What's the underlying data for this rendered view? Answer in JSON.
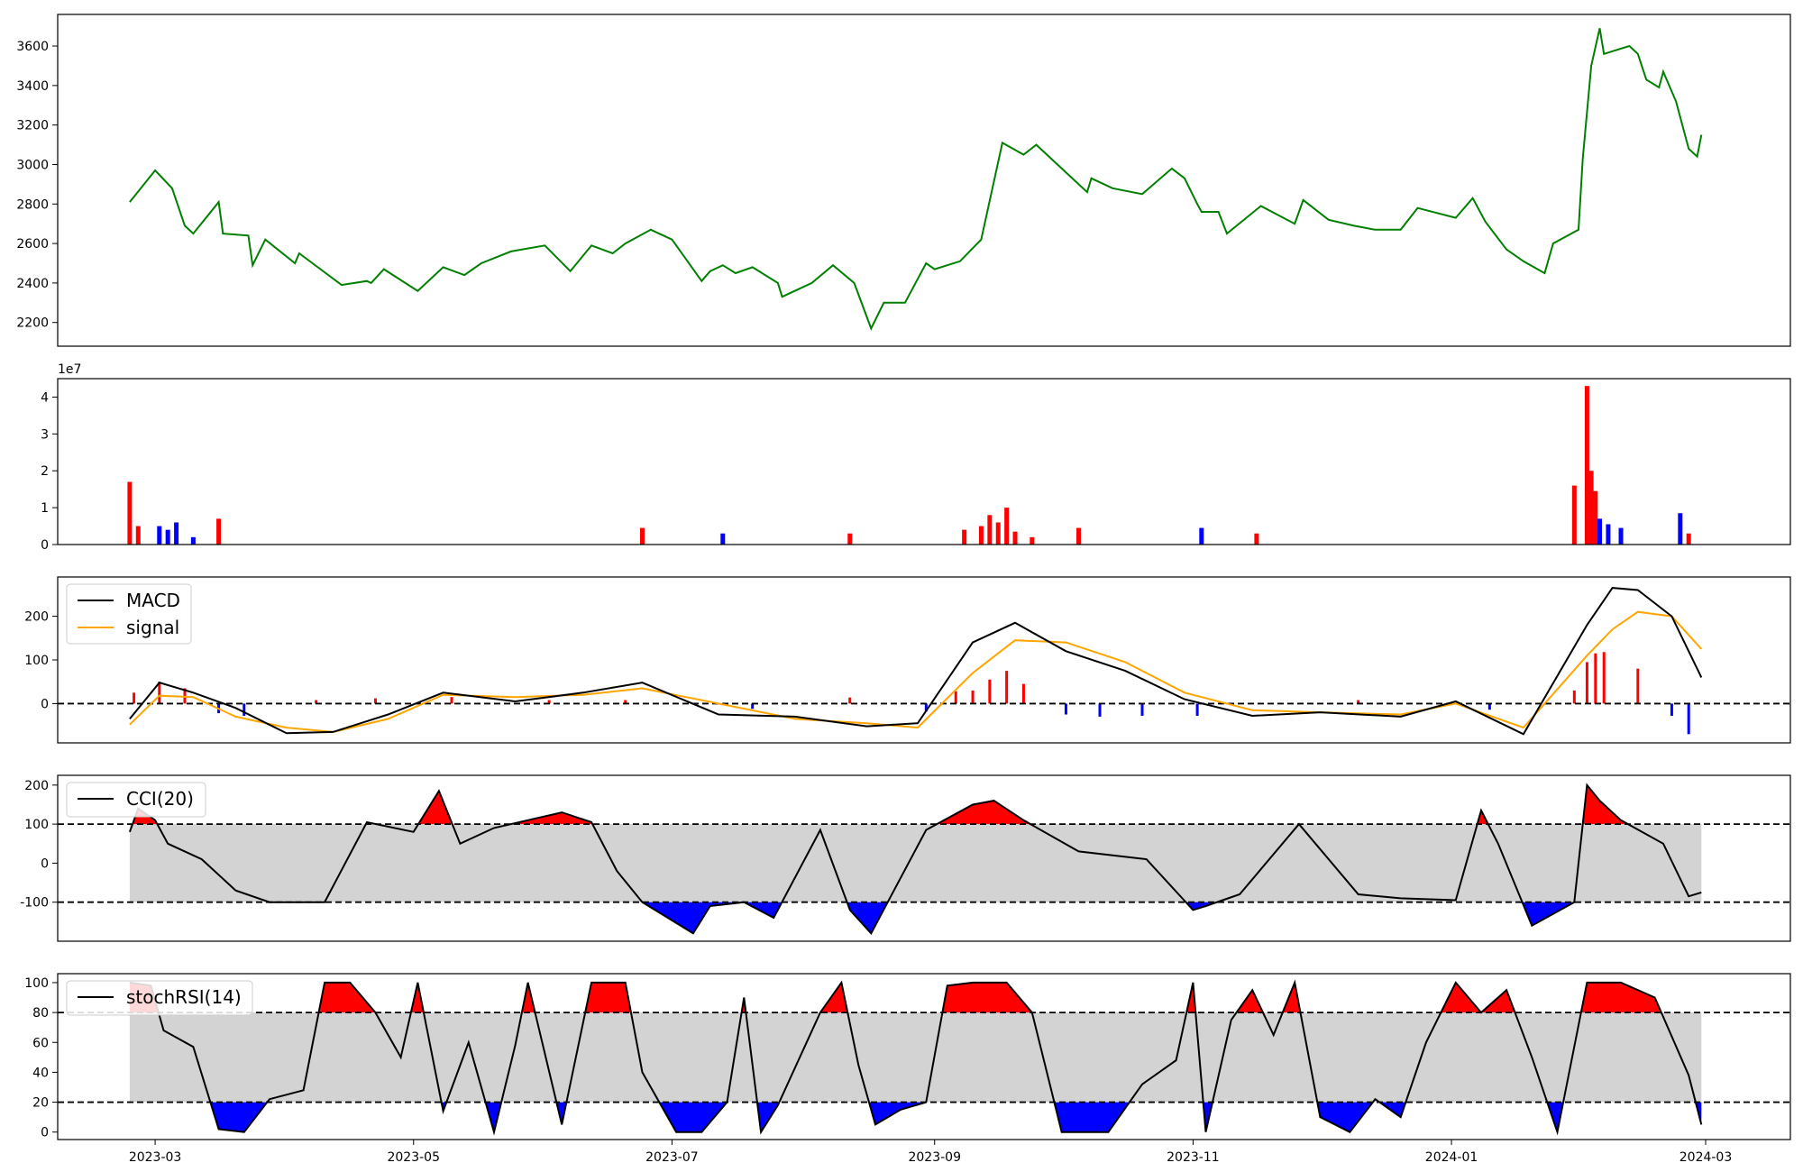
{
  "x_ticks": [
    "2023-03",
    "2023-05",
    "2023-07",
    "2023-09",
    "2023-11",
    "2024-01",
    "2024-03"
  ],
  "x_tick_dates": [
    "2023-03-01",
    "2023-05-01",
    "2023-07-01",
    "2023-09-01",
    "2023-11-01",
    "2024-01-01",
    "2024-03-01"
  ],
  "x_range": [
    "2023-02-06",
    "2024-03-21"
  ],
  "colors": {
    "price": "#008000",
    "up": "#ff0000",
    "down": "#0000ff",
    "flat": "#000000",
    "macd": "#000000",
    "signal": "#ffa500",
    "band": "#d3d3d3",
    "axes": "#000000"
  },
  "chart_data": [
    {
      "type": "line",
      "panel": "price",
      "ylim": [
        2080,
        3760
      ],
      "yticks": [
        2200,
        2400,
        2600,
        2800,
        3000,
        3200,
        3400,
        3600
      ],
      "series": [
        {
          "x": [
            "2023-02-23",
            "2023-03-01",
            "2023-03-05",
            "2023-03-08",
            "2023-03-10",
            "2023-03-16",
            "2023-03-17",
            "2023-03-23",
            "2023-03-24",
            "2023-03-27",
            "2023-04-03",
            "2023-04-04",
            "2023-04-14",
            "2023-04-20",
            "2023-04-21",
            "2023-04-24",
            "2023-05-02",
            "2023-05-08",
            "2023-05-13",
            "2023-05-17",
            "2023-05-24",
            "2023-06-01",
            "2023-06-07",
            "2023-06-12",
            "2023-06-17",
            "2023-06-20",
            "2023-06-26",
            "2023-07-01",
            "2023-07-08",
            "2023-07-10",
            "2023-07-13",
            "2023-07-16",
            "2023-07-20",
            "2023-07-26",
            "2023-07-27",
            "2023-08-03",
            "2023-08-08",
            "2023-08-13",
            "2023-08-17",
            "2023-08-20",
            "2023-08-25",
            "2023-08-30",
            "2023-09-01",
            "2023-09-07",
            "2023-09-12",
            "2023-09-17",
            "2023-09-22",
            "2023-09-25",
            "2023-10-07",
            "2023-10-08",
            "2023-10-13",
            "2023-10-20",
            "2023-10-27",
            "2023-10-30",
            "2023-11-02",
            "2023-11-03",
            "2023-11-07",
            "2023-11-09",
            "2023-11-17",
            "2023-11-25",
            "2023-11-27",
            "2023-12-03",
            "2023-12-09",
            "2023-12-14",
            "2023-12-20",
            "2023-12-24",
            "2024-01-02",
            "2024-01-06",
            "2024-01-09",
            "2024-01-14",
            "2024-01-18",
            "2024-01-23",
            "2024-01-25",
            "2024-01-31",
            "2024-02-01",
            "2024-02-03",
            "2024-02-05",
            "2024-02-06",
            "2024-02-12",
            "2024-02-14",
            "2024-02-16",
            "2024-02-19",
            "2024-02-20",
            "2024-02-23",
            "2024-02-26",
            "2024-02-28",
            "2024-02-29"
          ],
          "y": [
            2810,
            2970,
            2880,
            2690,
            2650,
            2810,
            2650,
            2640,
            2490,
            2620,
            2500,
            2550,
            2390,
            2410,
            2400,
            2470,
            2360,
            2480,
            2440,
            2500,
            2560,
            2590,
            2460,
            2590,
            2550,
            2600,
            2670,
            2620,
            2410,
            2460,
            2490,
            2450,
            2480,
            2400,
            2330,
            2400,
            2490,
            2400,
            2170,
            2300,
            2300,
            2500,
            2470,
            2510,
            2620,
            3110,
            3050,
            3100,
            2860,
            2930,
            2880,
            2850,
            2980,
            2930,
            2800,
            2760,
            2760,
            2650,
            2790,
            2700,
            2820,
            2720,
            2690,
            2670,
            2670,
            2780,
            2730,
            2830,
            2710,
            2570,
            2510,
            2450,
            2600,
            2670,
            3030,
            3500,
            3690,
            3560,
            3600,
            3560,
            3430,
            3390,
            3470,
            3320,
            3080,
            3040,
            3150
          ],
          "name": ""
        }
      ]
    },
    {
      "type": "bar",
      "panel": "volume",
      "ylim": [
        0,
        4.5
      ],
      "yticks": [
        0,
        1,
        2,
        3,
        4
      ],
      "scale_label": "1e7",
      "series": [
        {
          "name": "",
          "x": [
            "2023-02-23",
            "2023-02-25",
            "2023-03-02",
            "2023-03-04",
            "2023-03-06",
            "2023-03-10",
            "2023-03-16",
            "2023-06-24",
            "2023-07-13",
            "2023-08-12",
            "2023-09-08",
            "2023-09-12",
            "2023-09-14",
            "2023-09-16",
            "2023-09-18",
            "2023-09-20",
            "2023-09-24",
            "2023-10-05",
            "2023-11-03",
            "2023-11-16",
            "2024-01-30",
            "2024-02-02",
            "2024-02-03",
            "2024-02-04",
            "2024-02-05",
            "2024-02-07",
            "2024-02-10",
            "2024-02-24",
            "2024-02-26"
          ],
          "values": [
            1.7,
            0.5,
            0.5,
            0.4,
            0.6,
            0.2,
            0.7,
            0.45,
            0.3,
            0.3,
            0.4,
            0.5,
            0.8,
            0.6,
            1.0,
            0.35,
            0.2,
            0.45,
            0.45,
            0.3,
            1.6,
            4.3,
            2.0,
            1.45,
            0.7,
            0.55,
            0.45,
            0.85,
            0.3
          ],
          "direction": [
            "up",
            "up",
            "down",
            "down",
            "down",
            "down",
            "up",
            "up",
            "down",
            "up",
            "up",
            "up",
            "up",
            "up",
            "up",
            "up",
            "up",
            "up",
            "down",
            "up",
            "up",
            "up",
            "up",
            "up",
            "down",
            "down",
            "down",
            "down",
            "up"
          ]
        }
      ]
    },
    {
      "type": "line",
      "panel": "macd",
      "ylim": [
        -90,
        290
      ],
      "yticks": [
        0,
        100,
        200
      ],
      "legend": [
        "MACD",
        "signal"
      ],
      "legend_position": "upper-left",
      "x": [
        "2023-02-23",
        "2023-03-02",
        "2023-03-10",
        "2023-03-20",
        "2023-04-01",
        "2023-04-12",
        "2023-04-25",
        "2023-05-08",
        "2023-05-25",
        "2023-06-10",
        "2023-06-24",
        "2023-07-12",
        "2023-07-30",
        "2023-08-16",
        "2023-08-28",
        "2023-09-10",
        "2023-09-20",
        "2023-10-02",
        "2023-10-16",
        "2023-10-30",
        "2023-11-15",
        "2023-12-01",
        "2023-12-20",
        "2024-01-02",
        "2024-01-18",
        "2024-02-02",
        "2024-02-08",
        "2024-02-14",
        "2024-02-22",
        "2024-02-29"
      ],
      "series": [
        {
          "name": "MACD",
          "values": [
            -35,
            48,
            25,
            -10,
            -68,
            -65,
            -25,
            25,
            5,
            25,
            48,
            -25,
            -30,
            -52,
            -45,
            140,
            185,
            120,
            75,
            10,
            -28,
            -20,
            -30,
            5,
            -70,
            180,
            265,
            260,
            200,
            60
          ]
        },
        {
          "name": "signal",
          "values": [
            -48,
            18,
            15,
            -30,
            -55,
            -65,
            -35,
            20,
            15,
            20,
            35,
            0,
            -35,
            -45,
            -55,
            70,
            145,
            140,
            95,
            25,
            -15,
            -20,
            -25,
            0,
            -55,
            110,
            170,
            210,
            200,
            125
          ]
        }
      ],
      "histogram": {
        "x": [
          "2023-02-24",
          "2023-03-02",
          "2023-03-08",
          "2023-03-16",
          "2023-03-22",
          "2023-04-08",
          "2023-04-22",
          "2023-05-10",
          "2023-06-02",
          "2023-06-20",
          "2023-07-20",
          "2023-08-12",
          "2023-08-30",
          "2023-09-06",
          "2023-09-10",
          "2023-09-14",
          "2023-09-18",
          "2023-09-22",
          "2023-10-02",
          "2023-10-10",
          "2023-10-20",
          "2023-11-02",
          "2023-12-10",
          "2024-01-10",
          "2024-01-30",
          "2024-02-02",
          "2024-02-04",
          "2024-02-06",
          "2024-02-14",
          "2024-02-22",
          "2024-02-26"
        ],
        "values": [
          25,
          50,
          35,
          -22,
          -28,
          8,
          12,
          15,
          8,
          8,
          -12,
          14,
          -18,
          28,
          30,
          55,
          75,
          45,
          -25,
          -30,
          -28,
          -28,
          8,
          -14,
          30,
          95,
          115,
          118,
          80,
          -28,
          -70
        ]
      }
    },
    {
      "type": "line",
      "panel": "cci",
      "ylim": [
        -200,
        225
      ],
      "yticks": [
        -100,
        0,
        100,
        200
      ],
      "legend": [
        "CCI(20)"
      ],
      "legend_position": "upper-left",
      "reference_lines": [
        100,
        -100
      ],
      "series": [
        {
          "name": "CCI(20)",
          "x": [
            "2023-02-23",
            "2023-02-25",
            "2023-03-01",
            "2023-03-04",
            "2023-03-12",
            "2023-03-20",
            "2023-03-28",
            "2023-04-10",
            "2023-04-20",
            "2023-05-01",
            "2023-05-07",
            "2023-05-12",
            "2023-05-20",
            "2023-06-05",
            "2023-06-12",
            "2023-06-18",
            "2023-06-24",
            "2023-07-06",
            "2023-07-10",
            "2023-07-18",
            "2023-07-25",
            "2023-08-05",
            "2023-08-12",
            "2023-08-17",
            "2023-08-30",
            "2023-09-10",
            "2023-09-15",
            "2023-09-22",
            "2023-10-05",
            "2023-10-21",
            "2023-11-01",
            "2023-11-04",
            "2023-11-12",
            "2023-11-26",
            "2023-12-10",
            "2023-12-20",
            "2024-01-02",
            "2024-01-08",
            "2024-01-12",
            "2024-01-20",
            "2024-01-30",
            "2024-02-02",
            "2024-02-05",
            "2024-02-10",
            "2024-02-20",
            "2024-02-26",
            "2024-02-29"
          ],
          "values": [
            80,
            140,
            110,
            50,
            10,
            -70,
            -100,
            -100,
            105,
            80,
            185,
            50,
            90,
            130,
            105,
            -20,
            -100,
            -180,
            -110,
            -100,
            -140,
            85,
            -120,
            -180,
            85,
            150,
            160,
            110,
            30,
            10,
            -120,
            -110,
            -80,
            100,
            -80,
            -90,
            -95,
            135,
            50,
            -160,
            -100,
            200,
            160,
            110,
            50,
            -85,
            -75
          ]
        }
      ]
    },
    {
      "type": "line",
      "panel": "stochrsi",
      "ylim": [
        -5,
        106
      ],
      "yticks": [
        0,
        20,
        40,
        60,
        80,
        100
      ],
      "legend": [
        "stochRSI(14)"
      ],
      "legend_position": "upper-left",
      "reference_lines": [
        80,
        20
      ],
      "series": [
        {
          "name": "stochRSI(14)",
          "x": [
            "2023-02-23",
            "2023-02-28",
            "2023-03-03",
            "2023-03-10",
            "2023-03-16",
            "2023-03-22",
            "2023-03-28",
            "2023-04-05",
            "2023-04-10",
            "2023-04-16",
            "2023-04-22",
            "2023-04-28",
            "2023-05-02",
            "2023-05-08",
            "2023-05-14",
            "2023-05-20",
            "2023-05-25",
            "2023-05-28",
            "2023-06-05",
            "2023-06-12",
            "2023-06-20",
            "2023-06-24",
            "2023-07-02",
            "2023-07-08",
            "2023-07-14",
            "2023-07-18",
            "2023-07-22",
            "2023-07-26",
            "2023-08-05",
            "2023-08-10",
            "2023-08-14",
            "2023-08-18",
            "2023-08-24",
            "2023-08-30",
            "2023-09-04",
            "2023-09-10",
            "2023-09-18",
            "2023-09-24",
            "2023-10-01",
            "2023-10-12",
            "2023-10-20",
            "2023-10-28",
            "2023-11-01",
            "2023-11-04",
            "2023-11-10",
            "2023-11-15",
            "2023-11-20",
            "2023-11-25",
            "2023-12-01",
            "2023-12-08",
            "2023-12-14",
            "2023-12-20",
            "2023-12-26",
            "2024-01-02",
            "2024-01-08",
            "2024-01-14",
            "2024-01-20",
            "2024-01-26",
            "2024-02-02",
            "2024-02-06",
            "2024-02-10",
            "2024-02-18",
            "2024-02-26",
            "2024-02-29"
          ],
          "values": [
            100,
            98,
            68,
            57,
            2,
            0,
            22,
            28,
            100,
            100,
            80,
            50,
            100,
            14,
            60,
            0,
            58,
            100,
            5,
            100,
            100,
            40,
            0,
            0,
            20,
            90,
            0,
            18,
            80,
            100,
            45,
            5,
            15,
            20,
            98,
            100,
            100,
            80,
            0,
            0,
            32,
            48,
            100,
            0,
            75,
            95,
            65,
            100,
            10,
            0,
            22,
            10,
            60,
            100,
            80,
            95,
            50,
            0,
            100,
            100,
            100,
            90,
            38,
            5
          ]
        }
      ]
    }
  ]
}
